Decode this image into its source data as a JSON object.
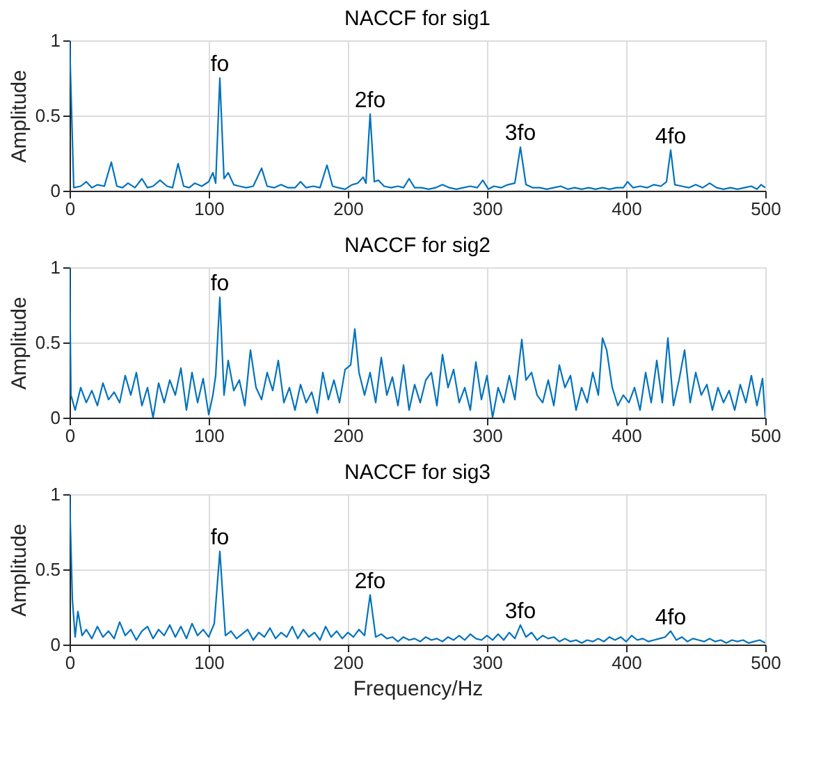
{
  "chart_data": [
    {
      "type": "line",
      "title": "NACCF for sig1",
      "ylabel": "Amplitude",
      "xlim": [
        0,
        500
      ],
      "xticks": [
        0,
        100,
        200,
        300,
        400,
        500
      ],
      "ylim": [
        0,
        1
      ],
      "yticks": [
        0,
        0.5,
        1
      ],
      "grid": true,
      "x": [
        0,
        3,
        8,
        12,
        16,
        20,
        25,
        30,
        34,
        38,
        42,
        47,
        52,
        56,
        60,
        65,
        70,
        74,
        78,
        82,
        86,
        90,
        95,
        100,
        103,
        105,
        108,
        111,
        114,
        118,
        122,
        127,
        132,
        138,
        142,
        147,
        152,
        157,
        162,
        166,
        170,
        175,
        180,
        185,
        189,
        193,
        198,
        203,
        207,
        211,
        213,
        216,
        219,
        222,
        226,
        231,
        236,
        240,
        244,
        248,
        253,
        258,
        263,
        268,
        273,
        278,
        283,
        288,
        293,
        297,
        301,
        305,
        310,
        315,
        320,
        324,
        328,
        333,
        338,
        343,
        348,
        353,
        358,
        363,
        368,
        373,
        378,
        383,
        388,
        393,
        398,
        401,
        405,
        410,
        415,
        420,
        425,
        429,
        432,
        435,
        440,
        445,
        450,
        455,
        460,
        465,
        470,
        475,
        480,
        485,
        490,
        494,
        497,
        500
      ],
      "series": [
        {
          "color": "#0072bd",
          "values": [
            1,
            0.02,
            0.03,
            0.06,
            0.02,
            0.04,
            0.03,
            0.19,
            0.03,
            0.02,
            0.05,
            0.02,
            0.08,
            0.02,
            0.03,
            0.07,
            0.03,
            0.02,
            0.18,
            0.03,
            0.02,
            0.05,
            0.03,
            0.06,
            0.12,
            0.05,
            0.75,
            0.08,
            0.12,
            0.04,
            0.03,
            0.02,
            0.03,
            0.15,
            0.03,
            0.02,
            0.04,
            0.02,
            0.02,
            0.06,
            0.02,
            0.03,
            0.02,
            0.17,
            0.03,
            0.02,
            0.01,
            0.04,
            0.05,
            0.09,
            0.05,
            0.51,
            0.06,
            0.07,
            0.03,
            0.02,
            0.03,
            0.02,
            0.08,
            0.02,
            0.02,
            0.01,
            0.02,
            0.04,
            0.02,
            0.01,
            0.02,
            0.03,
            0.02,
            0.07,
            0.01,
            0.03,
            0.02,
            0.04,
            0.05,
            0.29,
            0.04,
            0.02,
            0.02,
            0.01,
            0.02,
            0.03,
            0.01,
            0.02,
            0.01,
            0.02,
            0.01,
            0.02,
            0.01,
            0.02,
            0.02,
            0.06,
            0.02,
            0.03,
            0.02,
            0.04,
            0.03,
            0.06,
            0.27,
            0.04,
            0.03,
            0.02,
            0.04,
            0.02,
            0.05,
            0.02,
            0.01,
            0.02,
            0.01,
            0.02,
            0.03,
            0.01,
            0.04,
            0.02
          ]
        }
      ],
      "annotations": [
        {
          "text": "fo",
          "x": 108,
          "y": 0.75
        },
        {
          "text": "2fo",
          "x": 216,
          "y": 0.51
        },
        {
          "text": "3fo",
          "x": 324,
          "y": 0.29
        },
        {
          "text": "4fo",
          "x": 432,
          "y": 0.27
        }
      ]
    },
    {
      "type": "line",
      "title": "NACCF for sig2",
      "ylabel": "Amplitude",
      "xlim": [
        0,
        500
      ],
      "xticks": [
        0,
        100,
        200,
        300,
        400,
        500
      ],
      "ylim": [
        0,
        1
      ],
      "yticks": [
        0,
        0.5,
        1
      ],
      "grid": true,
      "x": [
        0,
        1,
        4,
        8,
        12,
        16,
        20,
        24,
        28,
        32,
        36,
        40,
        44,
        48,
        52,
        56,
        60,
        64,
        68,
        72,
        76,
        80,
        84,
        88,
        92,
        96,
        100,
        103,
        105,
        108,
        111,
        114,
        118,
        122,
        126,
        130,
        134,
        138,
        142,
        146,
        150,
        154,
        158,
        162,
        166,
        170,
        174,
        178,
        182,
        186,
        190,
        194,
        198,
        202,
        205,
        208,
        212,
        216,
        220,
        224,
        228,
        232,
        236,
        240,
        244,
        248,
        252,
        256,
        260,
        264,
        268,
        272,
        276,
        280,
        284,
        288,
        292,
        296,
        300,
        304,
        308,
        312,
        316,
        320,
        325,
        328,
        332,
        336,
        340,
        344,
        348,
        352,
        356,
        360,
        364,
        368,
        372,
        376,
        380,
        383,
        386,
        390,
        394,
        398,
        402,
        406,
        410,
        414,
        418,
        422,
        426,
        430,
        434,
        438,
        442,
        446,
        450,
        454,
        458,
        462,
        466,
        470,
        474,
        478,
        482,
        486,
        490,
        494,
        498,
        500
      ],
      "series": [
        {
          "color": "#0072bd",
          "values": [
            1,
            0.15,
            0.05,
            0.2,
            0.1,
            0.18,
            0.08,
            0.23,
            0.12,
            0.17,
            0.1,
            0.28,
            0.15,
            0.3,
            0.08,
            0.2,
            0.0,
            0.23,
            0.1,
            0.25,
            0.15,
            0.33,
            0.05,
            0.3,
            0.1,
            0.26,
            0.02,
            0.15,
            0.28,
            0.8,
            0.15,
            0.38,
            0.18,
            0.25,
            0.08,
            0.45,
            0.2,
            0.12,
            0.3,
            0.18,
            0.38,
            0.1,
            0.2,
            0.05,
            0.22,
            0.1,
            0.17,
            0.03,
            0.3,
            0.12,
            0.25,
            0.1,
            0.32,
            0.35,
            0.59,
            0.3,
            0.15,
            0.3,
            0.1,
            0.4,
            0.15,
            0.27,
            0.08,
            0.35,
            0.05,
            0.22,
            0.1,
            0.25,
            0.3,
            0.08,
            0.42,
            0.2,
            0.32,
            0.1,
            0.2,
            0.05,
            0.37,
            0.12,
            0.28,
            0.0,
            0.2,
            0.1,
            0.28,
            0.12,
            0.52,
            0.25,
            0.3,
            0.15,
            0.1,
            0.25,
            0.08,
            0.35,
            0.2,
            0.28,
            0.05,
            0.2,
            0.1,
            0.3,
            0.15,
            0.53,
            0.45,
            0.2,
            0.08,
            0.15,
            0.1,
            0.2,
            0.05,
            0.3,
            0.1,
            0.38,
            0.1,
            0.53,
            0.08,
            0.25,
            0.45,
            0.1,
            0.3,
            0.15,
            0.22,
            0.05,
            0.2,
            0.1,
            0.18,
            0.05,
            0.22,
            0.1,
            0.28,
            0.08,
            0.26,
            0.0
          ]
        }
      ],
      "annotations": [
        {
          "text": "fo",
          "x": 108,
          "y": 0.8
        }
      ]
    },
    {
      "type": "line",
      "title": "NACCF for sig3",
      "xlabel": "Frequency/Hz",
      "ylabel": "Amplitude",
      "xlim": [
        0,
        500
      ],
      "xticks": [
        0,
        100,
        200,
        300,
        400,
        500
      ],
      "ylim": [
        0,
        1
      ],
      "yticks": [
        0,
        0.5,
        1
      ],
      "grid": true,
      "x": [
        0,
        2,
        4,
        6,
        9,
        12,
        16,
        20,
        24,
        28,
        32,
        36,
        40,
        44,
        48,
        52,
        56,
        60,
        64,
        68,
        72,
        76,
        80,
        84,
        88,
        92,
        96,
        100,
        104,
        108,
        112,
        116,
        120,
        124,
        128,
        132,
        136,
        140,
        144,
        148,
        152,
        156,
        160,
        164,
        168,
        172,
        176,
        180,
        184,
        188,
        192,
        196,
        200,
        204,
        208,
        212,
        216,
        220,
        224,
        228,
        232,
        236,
        240,
        244,
        248,
        252,
        256,
        260,
        264,
        268,
        272,
        276,
        280,
        284,
        288,
        292,
        296,
        300,
        304,
        308,
        312,
        316,
        320,
        324,
        328,
        332,
        336,
        340,
        344,
        348,
        352,
        356,
        360,
        364,
        368,
        372,
        376,
        380,
        384,
        388,
        392,
        396,
        400,
        404,
        408,
        412,
        416,
        420,
        424,
        428,
        432,
        436,
        440,
        444,
        448,
        452,
        456,
        460,
        464,
        468,
        472,
        476,
        480,
        484,
        488,
        492,
        496,
        500
      ],
      "series": [
        {
          "color": "#0072bd",
          "values": [
            1,
            0.3,
            0.05,
            0.22,
            0.06,
            0.1,
            0.04,
            0.12,
            0.05,
            0.09,
            0.04,
            0.15,
            0.06,
            0.1,
            0.03,
            0.09,
            0.12,
            0.04,
            0.1,
            0.06,
            0.13,
            0.05,
            0.12,
            0.04,
            0.14,
            0.06,
            0.1,
            0.05,
            0.14,
            0.62,
            0.06,
            0.09,
            0.04,
            0.07,
            0.1,
            0.03,
            0.08,
            0.05,
            0.11,
            0.04,
            0.08,
            0.05,
            0.12,
            0.04,
            0.1,
            0.05,
            0.08,
            0.03,
            0.12,
            0.05,
            0.09,
            0.04,
            0.08,
            0.05,
            0.1,
            0.06,
            0.33,
            0.05,
            0.07,
            0.04,
            0.05,
            0.02,
            0.05,
            0.03,
            0.04,
            0.02,
            0.05,
            0.03,
            0.04,
            0.02,
            0.05,
            0.03,
            0.06,
            0.03,
            0.07,
            0.04,
            0.03,
            0.06,
            0.03,
            0.07,
            0.03,
            0.08,
            0.04,
            0.13,
            0.05,
            0.08,
            0.03,
            0.06,
            0.04,
            0.05,
            0.02,
            0.04,
            0.02,
            0.03,
            0.01,
            0.03,
            0.02,
            0.04,
            0.02,
            0.05,
            0.03,
            0.05,
            0.02,
            0.06,
            0.03,
            0.04,
            0.02,
            0.03,
            0.04,
            0.05,
            0.09,
            0.03,
            0.05,
            0.02,
            0.04,
            0.03,
            0.02,
            0.04,
            0.02,
            0.03,
            0.01,
            0.03,
            0.02,
            0.03,
            0.01,
            0.02,
            0.03,
            0.01
          ]
        }
      ],
      "annotations": [
        {
          "text": "fo",
          "x": 108,
          "y": 0.62
        },
        {
          "text": "2fo",
          "x": 216,
          "y": 0.33
        },
        {
          "text": "3fo",
          "x": 324,
          "y": 0.13
        },
        {
          "text": "4fo",
          "x": 432,
          "y": 0.09
        }
      ]
    }
  ]
}
